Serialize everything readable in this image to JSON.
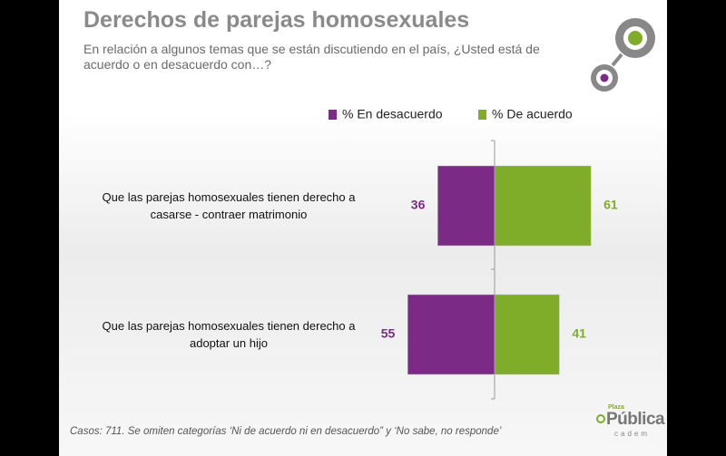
{
  "chart_data": {
    "type": "diverging_bar",
    "title": "Derechos de parejas homosexuales",
    "subtitle": "En relación a algunos temas que se están discutiendo en el país, ¿Usted está de acuerdo o en desacuerdo con…?",
    "categories": [
      "Que las parejas homosexuales tienen derecho a casarse - contraer matrimonio",
      "Que las parejas homosexuales tienen derecho a adoptar un hijo"
    ],
    "series": [
      {
        "name": "% En desacuerdo",
        "color": "#7b2a86",
        "values": [
          36,
          55
        ]
      },
      {
        "name": "% De acuerdo",
        "color": "#7fad2a",
        "values": [
          61,
          41
        ]
      }
    ],
    "footnote": "Casos: 711. Se omiten categorías ‘Ni de acuerdo ni en desacuerdo” y ‘No sabe, no responde’",
    "logo": {
      "name": "Pública",
      "top": "Plaza",
      "bottom": "cadem"
    }
  }
}
